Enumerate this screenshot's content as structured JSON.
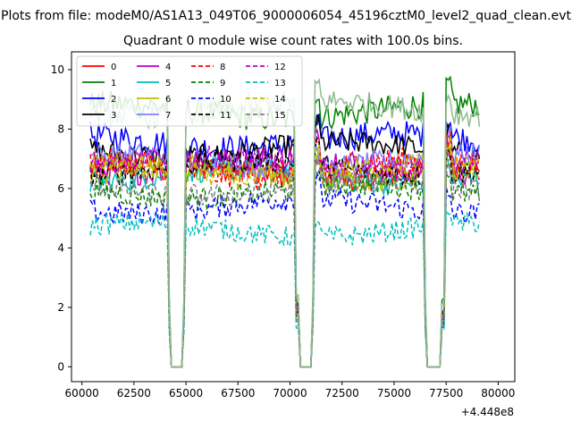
{
  "chart_data": {
    "type": "line",
    "suptitle": "Plots from file: modeM0/AS1A13_049T06_9000006054_45196cztM0_level2_quad_clean.evt",
    "title": "Quadrant 0 module wise count rates with 100.0s bins.",
    "xlabel": "",
    "ylabel": "",
    "x_offset_label": "+4.448e8",
    "xlim": [
      59500,
      80800
    ],
    "ylim": [
      -0.5,
      10.6
    ],
    "xticks": [
      60000,
      62500,
      65000,
      67500,
      70000,
      72500,
      75000,
      77500,
      80000
    ],
    "xtick_labels": [
      "60000",
      "62500",
      "65000",
      "67500",
      "70000",
      "72500",
      "75000",
      "77500",
      "80000"
    ],
    "yticks": [
      0,
      2,
      4,
      6,
      8,
      10
    ],
    "ytick_labels": [
      "0",
      "2",
      "4",
      "6",
      "8",
      "10"
    ],
    "grid": false,
    "legend_position": "top-left",
    "legend_columns": 4,
    "segments": [
      [
        60400,
        63900
      ],
      [
        70250,
        71250
      ],
      [
        77450,
        79100
      ]
    ],
    "gaps": [
      [
        64100,
        65000
      ],
      [
        70250,
        71200
      ],
      [
        76400,
        77450
      ]
    ],
    "series": [
      {
        "name": "0",
        "color": "#ff0000",
        "dash": "solid",
        "mean": 6.6,
        "noise": 0.45
      },
      {
        "name": "1",
        "color": "#008000",
        "dash": "solid",
        "mean": 8.6,
        "noise": 0.45
      },
      {
        "name": "2",
        "color": "#0000ff",
        "dash": "solid",
        "mean": 7.6,
        "noise": 0.45
      },
      {
        "name": "3",
        "color": "#000000",
        "dash": "solid",
        "mean": 7.3,
        "noise": 0.4
      },
      {
        "name": "4",
        "color": "#bf00bf",
        "dash": "solid",
        "mean": 6.8,
        "noise": 0.45
      },
      {
        "name": "5",
        "color": "#00bfbf",
        "dash": "solid",
        "mean": 6.4,
        "noise": 0.4
      },
      {
        "name": "6",
        "color": "#bfbf00",
        "dash": "solid",
        "mean": 6.5,
        "noise": 0.4
      },
      {
        "name": "7",
        "color": "#8080ff",
        "dash": "solid",
        "mean": 6.9,
        "noise": 0.4
      },
      {
        "name": "8",
        "color": "#ff0000",
        "dash": "dashed",
        "mean": 6.7,
        "noise": 0.45
      },
      {
        "name": "9",
        "color": "#008000",
        "dash": "dashed",
        "mean": 5.9,
        "noise": 0.4
      },
      {
        "name": "10",
        "color": "#0000ff",
        "dash": "dashed",
        "mean": 5.4,
        "noise": 0.4
      },
      {
        "name": "11",
        "color": "#000000",
        "dash": "dashed",
        "mean": 6.7,
        "noise": 0.4
      },
      {
        "name": "12",
        "color": "#bf00bf",
        "dash": "dashed",
        "mean": 6.8,
        "noise": 0.4
      },
      {
        "name": "13",
        "color": "#00bfbf",
        "dash": "dashed",
        "mean": 4.6,
        "noise": 0.35
      },
      {
        "name": "14",
        "color": "#bfbf00",
        "dash": "dashed",
        "mean": 6.6,
        "noise": 0.4
      },
      {
        "name": "15",
        "color": "#808080",
        "dash": "dashed",
        "mean": 6.0,
        "noise": 0.4
      },
      {
        "name": "",
        "color": "#8fbc8f",
        "dash": "solid",
        "mean": 8.7,
        "noise": 0.4
      }
    ]
  }
}
